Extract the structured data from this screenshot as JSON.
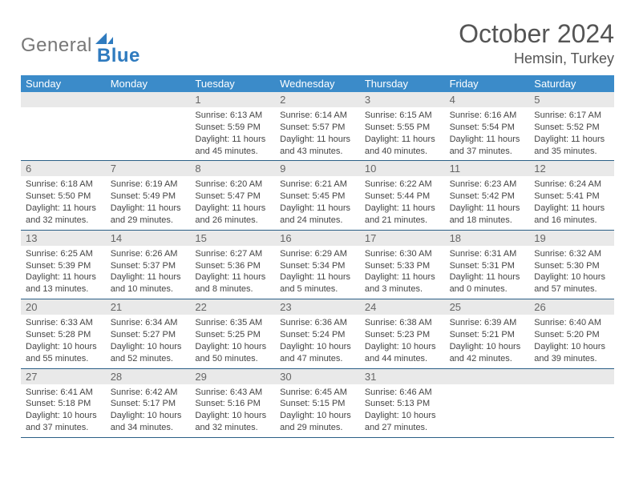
{
  "logo": {
    "part1": "General",
    "part2": "Blue"
  },
  "title": "October 2024",
  "location": "Hemsin, Turkey",
  "colors": {
    "header_bg": "#3b8bc9",
    "daynum_bg": "#e9e9e9",
    "rule": "#2b5f86",
    "text": "#444444",
    "title_text": "#555555"
  },
  "dow": [
    "Sunday",
    "Monday",
    "Tuesday",
    "Wednesday",
    "Thursday",
    "Friday",
    "Saturday"
  ],
  "weeks": [
    [
      {
        "n": "",
        "sr": "",
        "ss": "",
        "dl": ""
      },
      {
        "n": "",
        "sr": "",
        "ss": "",
        "dl": ""
      },
      {
        "n": "1",
        "sr": "Sunrise: 6:13 AM",
        "ss": "Sunset: 5:59 PM",
        "dl": "Daylight: 11 hours and 45 minutes."
      },
      {
        "n": "2",
        "sr": "Sunrise: 6:14 AM",
        "ss": "Sunset: 5:57 PM",
        "dl": "Daylight: 11 hours and 43 minutes."
      },
      {
        "n": "3",
        "sr": "Sunrise: 6:15 AM",
        "ss": "Sunset: 5:55 PM",
        "dl": "Daylight: 11 hours and 40 minutes."
      },
      {
        "n": "4",
        "sr": "Sunrise: 6:16 AM",
        "ss": "Sunset: 5:54 PM",
        "dl": "Daylight: 11 hours and 37 minutes."
      },
      {
        "n": "5",
        "sr": "Sunrise: 6:17 AM",
        "ss": "Sunset: 5:52 PM",
        "dl": "Daylight: 11 hours and 35 minutes."
      }
    ],
    [
      {
        "n": "6",
        "sr": "Sunrise: 6:18 AM",
        "ss": "Sunset: 5:50 PM",
        "dl": "Daylight: 11 hours and 32 minutes."
      },
      {
        "n": "7",
        "sr": "Sunrise: 6:19 AM",
        "ss": "Sunset: 5:49 PM",
        "dl": "Daylight: 11 hours and 29 minutes."
      },
      {
        "n": "8",
        "sr": "Sunrise: 6:20 AM",
        "ss": "Sunset: 5:47 PM",
        "dl": "Daylight: 11 hours and 26 minutes."
      },
      {
        "n": "9",
        "sr": "Sunrise: 6:21 AM",
        "ss": "Sunset: 5:45 PM",
        "dl": "Daylight: 11 hours and 24 minutes."
      },
      {
        "n": "10",
        "sr": "Sunrise: 6:22 AM",
        "ss": "Sunset: 5:44 PM",
        "dl": "Daylight: 11 hours and 21 minutes."
      },
      {
        "n": "11",
        "sr": "Sunrise: 6:23 AM",
        "ss": "Sunset: 5:42 PM",
        "dl": "Daylight: 11 hours and 18 minutes."
      },
      {
        "n": "12",
        "sr": "Sunrise: 6:24 AM",
        "ss": "Sunset: 5:41 PM",
        "dl": "Daylight: 11 hours and 16 minutes."
      }
    ],
    [
      {
        "n": "13",
        "sr": "Sunrise: 6:25 AM",
        "ss": "Sunset: 5:39 PM",
        "dl": "Daylight: 11 hours and 13 minutes."
      },
      {
        "n": "14",
        "sr": "Sunrise: 6:26 AM",
        "ss": "Sunset: 5:37 PM",
        "dl": "Daylight: 11 hours and 10 minutes."
      },
      {
        "n": "15",
        "sr": "Sunrise: 6:27 AM",
        "ss": "Sunset: 5:36 PM",
        "dl": "Daylight: 11 hours and 8 minutes."
      },
      {
        "n": "16",
        "sr": "Sunrise: 6:29 AM",
        "ss": "Sunset: 5:34 PM",
        "dl": "Daylight: 11 hours and 5 minutes."
      },
      {
        "n": "17",
        "sr": "Sunrise: 6:30 AM",
        "ss": "Sunset: 5:33 PM",
        "dl": "Daylight: 11 hours and 3 minutes."
      },
      {
        "n": "18",
        "sr": "Sunrise: 6:31 AM",
        "ss": "Sunset: 5:31 PM",
        "dl": "Daylight: 11 hours and 0 minutes."
      },
      {
        "n": "19",
        "sr": "Sunrise: 6:32 AM",
        "ss": "Sunset: 5:30 PM",
        "dl": "Daylight: 10 hours and 57 minutes."
      }
    ],
    [
      {
        "n": "20",
        "sr": "Sunrise: 6:33 AM",
        "ss": "Sunset: 5:28 PM",
        "dl": "Daylight: 10 hours and 55 minutes."
      },
      {
        "n": "21",
        "sr": "Sunrise: 6:34 AM",
        "ss": "Sunset: 5:27 PM",
        "dl": "Daylight: 10 hours and 52 minutes."
      },
      {
        "n": "22",
        "sr": "Sunrise: 6:35 AM",
        "ss": "Sunset: 5:25 PM",
        "dl": "Daylight: 10 hours and 50 minutes."
      },
      {
        "n": "23",
        "sr": "Sunrise: 6:36 AM",
        "ss": "Sunset: 5:24 PM",
        "dl": "Daylight: 10 hours and 47 minutes."
      },
      {
        "n": "24",
        "sr": "Sunrise: 6:38 AM",
        "ss": "Sunset: 5:23 PM",
        "dl": "Daylight: 10 hours and 44 minutes."
      },
      {
        "n": "25",
        "sr": "Sunrise: 6:39 AM",
        "ss": "Sunset: 5:21 PM",
        "dl": "Daylight: 10 hours and 42 minutes."
      },
      {
        "n": "26",
        "sr": "Sunrise: 6:40 AM",
        "ss": "Sunset: 5:20 PM",
        "dl": "Daylight: 10 hours and 39 minutes."
      }
    ],
    [
      {
        "n": "27",
        "sr": "Sunrise: 6:41 AM",
        "ss": "Sunset: 5:18 PM",
        "dl": "Daylight: 10 hours and 37 minutes."
      },
      {
        "n": "28",
        "sr": "Sunrise: 6:42 AM",
        "ss": "Sunset: 5:17 PM",
        "dl": "Daylight: 10 hours and 34 minutes."
      },
      {
        "n": "29",
        "sr": "Sunrise: 6:43 AM",
        "ss": "Sunset: 5:16 PM",
        "dl": "Daylight: 10 hours and 32 minutes."
      },
      {
        "n": "30",
        "sr": "Sunrise: 6:45 AM",
        "ss": "Sunset: 5:15 PM",
        "dl": "Daylight: 10 hours and 29 minutes."
      },
      {
        "n": "31",
        "sr": "Sunrise: 6:46 AM",
        "ss": "Sunset: 5:13 PM",
        "dl": "Daylight: 10 hours and 27 minutes."
      },
      {
        "n": "",
        "sr": "",
        "ss": "",
        "dl": ""
      },
      {
        "n": "",
        "sr": "",
        "ss": "",
        "dl": ""
      }
    ]
  ]
}
